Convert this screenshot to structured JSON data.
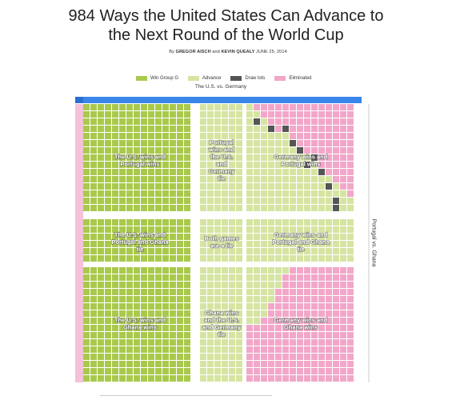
{
  "header": {
    "title_line1": "984 Ways the United States Can Advance to",
    "title_line2": "the Next Round of the World Cup",
    "byline_prefix": "By",
    "author1": "GREGOR AISCH",
    "byline_and": "and",
    "author2": "KEVIN QUEALY",
    "date": "JUNE 25, 2014"
  },
  "chart_data": {
    "type": "heatmap",
    "x_axis_label": "The U.S. vs. Germany",
    "y_axis_label": "Portugal vs. Ghana",
    "legend": [
      {
        "label": "Win Group G",
        "color": "#a9c94c"
      },
      {
        "label": "Advance",
        "color": "#d5e5a1"
      },
      {
        "label": "Draw lots",
        "color": "#555555"
      },
      {
        "label": "Eliminated",
        "color": "#f2a7c9"
      }
    ],
    "regions": [
      {
        "label": "The U.S. wins and Portugal wins",
        "outcome": "Win Group G"
      },
      {
        "label": "Portugal wins and the U.S. and Germany tie",
        "outcome": "Advance"
      },
      {
        "label": "Germany wins and Portugal wins",
        "outcome": "mixed"
      },
      {
        "label": "The U.S. wins and Portugal and Ghana tie",
        "outcome": "Win Group G"
      },
      {
        "label": "Both games are a tie",
        "outcome": "Advance"
      },
      {
        "label": "Germany wins and Portugal and Ghana tie",
        "outcome": "Advance"
      },
      {
        "label": "The U.S. wins and Ghana wins",
        "outcome": "Win Group G"
      },
      {
        "label": "Ghana wins and the U.S. and Germany tie",
        "outcome": "Advance"
      },
      {
        "label": "Germany wins and Ghana wins",
        "outcome": "mixed"
      }
    ],
    "highlight_cell": "0-0"
  }
}
